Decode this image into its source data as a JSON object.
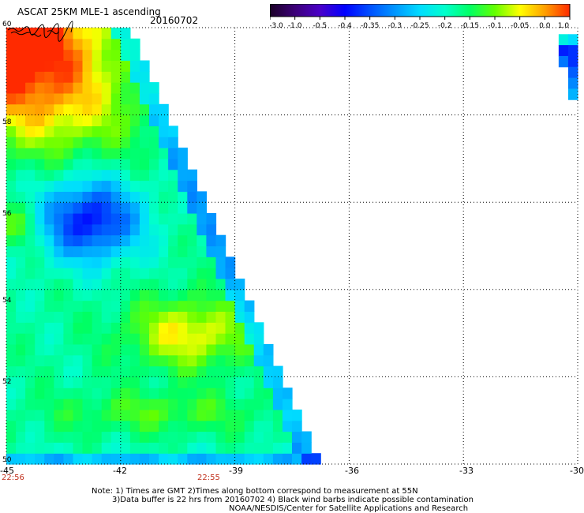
{
  "header": {
    "product": "ASCAT 25KM MLE-1 ascending",
    "date": "20160702"
  },
  "colorbar": {
    "labels": [
      "-3.0",
      "-1.0",
      "-0.5",
      "-0.4",
      "-0.35",
      "-0.3",
      "-0.25",
      "-0.2",
      "-0.15",
      "-0.1",
      "-0.05",
      "0.0",
      "1.0"
    ],
    "colors": [
      "#1a0026",
      "#3c0078",
      "#4a00c8",
      "#0000ff",
      "#0050ff",
      "#0096ff",
      "#00dcff",
      "#00ffcc",
      "#00ff64",
      "#64ff00",
      "#ffff00",
      "#ffa000",
      "#ff2a00"
    ]
  },
  "axes": {
    "lon_labels": [
      "-45",
      "-42",
      "-39",
      "-36",
      "-33",
      "-30"
    ],
    "lat_labels": [
      "60",
      "58",
      "56",
      "54",
      "52",
      "50"
    ]
  },
  "times": {
    "left": "22:56",
    "mid": "22:55"
  },
  "notes": {
    "line1": "Note: 1) Times are GMT 2)Times along bottom correspond to measurement at 55N",
    "line2": "3)Data buffer is 22 hrs from 20160702 4) Black wind barbs indicate possible contamination",
    "line3": "NOAA/NESDIS/Center for Satellite Applications and Research"
  }
}
